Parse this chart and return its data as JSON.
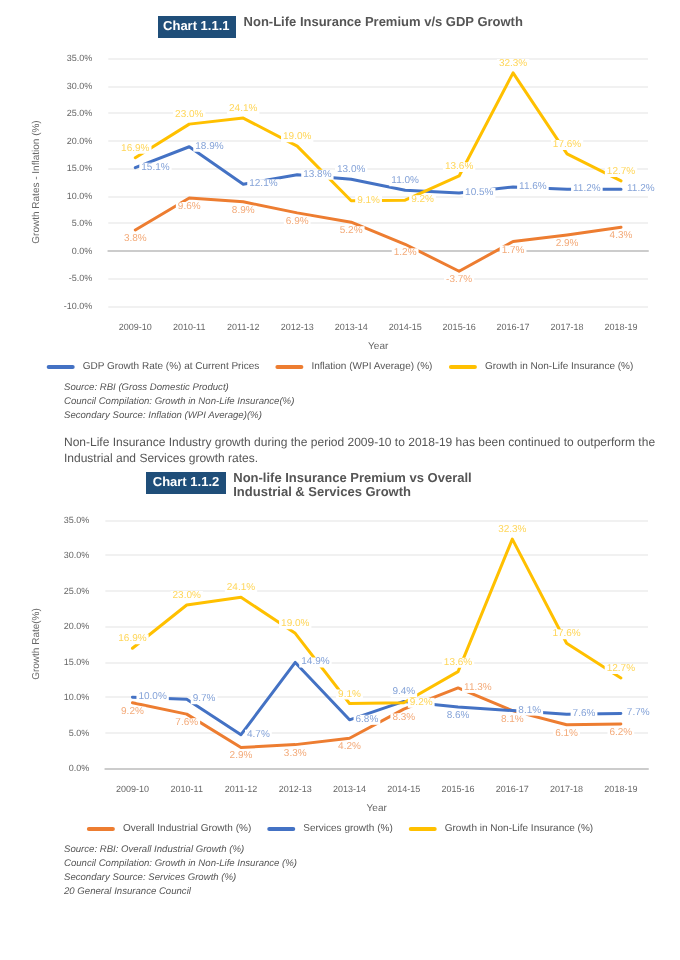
{
  "chart_data": [
    {
      "type": "line",
      "title": "Chart 1.1.1",
      "subtitle": "Non-Life Insurance Premium v/s GDP Growth",
      "xlabel": "Year",
      "ylabel": "Growth Rates - Inflation (%)",
      "categories": [
        "2009-10",
        "2010-11",
        "2011-12",
        "2012-13",
        "2013-14",
        "2014-15",
        "2015-16",
        "2016-17",
        "2017-18",
        "2018-19"
      ],
      "series": [
        {
          "name": "GDP Growth Rate (%) at Current Prices",
          "color": "#4472c4",
          "values": [
            15.1,
            18.9,
            12.1,
            13.8,
            13.0,
            11.0,
            10.5,
            11.6,
            11.2,
            11.2
          ],
          "value_labels": [
            "15.1%",
            "18.9%",
            "12.1%",
            "13.8%",
            "13.0%",
            "11.0%",
            "10.5%",
            "11.6%",
            "11.2%",
            "11.2%"
          ]
        },
        {
          "name": "Inflation (WPI Average) (%)",
          "color": "#ed7d31",
          "values": [
            3.8,
            9.6,
            8.9,
            6.9,
            5.2,
            1.2,
            -3.7,
            1.7,
            2.9,
            4.3
          ],
          "value_labels": [
            "3.8%",
            "9.6%",
            "8.9%",
            "6.9%",
            "5.2%",
            "1.2%",
            "-3.7%",
            "1.7%",
            "2.9%",
            "4.3%"
          ]
        },
        {
          "name": "Growth in Non-Life Insurance (%)",
          "color": "#ffc000",
          "values": [
            16.9,
            23.0,
            24.1,
            19.0,
            9.1,
            9.2,
            13.6,
            32.3,
            17.6,
            12.7
          ],
          "value_labels": [
            "16.9%",
            "23.0%",
            "24.1%",
            "19.0%",
            "9.1%",
            "9.2%",
            "13.6%",
            "32.3%",
            "17.6%",
            "12.7%"
          ]
        }
      ],
      "ylim": [
        -10,
        35
      ],
      "yticks": [
        {
          "value": -10,
          "label": "-10.0%"
        },
        {
          "value": -5,
          "label": "-5.0%"
        },
        {
          "value": 0,
          "label": "0.0%"
        },
        {
          "value": 5,
          "label": "5.0%"
        },
        {
          "value": 10,
          "label": "10.0%"
        },
        {
          "value": 15,
          "label": "15.0%"
        },
        {
          "value": 20,
          "label": "20.0%"
        },
        {
          "value": 25,
          "label": "25.0%"
        },
        {
          "value": 30,
          "label": "30.0%"
        },
        {
          "value": 35,
          "label": "35.0%"
        }
      ],
      "grid": "y",
      "legend": "bottom",
      "marker": "none",
      "line_style": "solid",
      "annotations": [
        "Source: RBI (Gross Domestic Product)",
        "Council Compilation: Growth in Non-Life Insurance(%)",
        "Secondary Source: Inflation (WPI Average)(%)",
        "Non-Life Insurance Industry growth during the period 2009-10 to 2018-19 has been continued to outperform the Industrial and Services growth rates."
      ]
    },
    {
      "type": "line",
      "title": "Chart 1.1.2",
      "subtitle": "Non-life Insurance Premium vs Overall Industrial & Services Growth",
      "xlabel": "Year",
      "ylabel": "Growth Rate(%)",
      "categories": [
        "2009-10",
        "2010-11",
        "2011-12",
        "2012-13",
        "2013-14",
        "2014-15",
        "2015-16",
        "2016-17",
        "2017-18",
        "2018-19"
      ],
      "series": [
        {
          "name": "Overall Industrial Growth (%)",
          "color": "#ed7d31",
          "values": [
            9.2,
            7.6,
            2.9,
            3.3,
            4.2,
            8.3,
            11.3,
            8.1,
            6.1,
            6.2
          ],
          "value_labels": [
            "9.2%",
            "7.6%",
            "2.9%",
            "3.3%",
            "4.2%",
            "8.3%",
            "11.3%",
            "8.1%",
            "6.1%",
            "6.2%"
          ]
        },
        {
          "name": "Services growth (%)",
          "color": "#4472c4",
          "values": [
            10.0,
            9.7,
            4.7,
            14.9,
            6.8,
            9.4,
            8.6,
            8.1,
            7.6,
            7.7
          ],
          "value_labels": [
            "10.0%",
            "9.7%",
            "4.7%",
            "14.9%",
            "6.8%",
            "9.4%",
            "8.6%",
            "8.1%",
            "7.6%",
            "7.7%"
          ]
        },
        {
          "name": "Growth in Non-Life Insurance (%)",
          "color": "#ffc000",
          "values": [
            16.9,
            23.0,
            24.1,
            19.0,
            9.1,
            9.2,
            13.6,
            32.3,
            17.6,
            12.7
          ],
          "value_labels": [
            "16.9%",
            "23.0%",
            "24.1%",
            "19.0%",
            "9.1%",
            "9.2%",
            "13.6%",
            "32.3%",
            "17.6%",
            "12.7%"
          ]
        }
      ],
      "ylim": [
        0,
        35
      ],
      "yticks": [
        {
          "value": 0,
          "label": "0.0%"
        },
        {
          "value": 5,
          "label": "5.0%"
        },
        {
          "value": 10,
          "label": "10.0%"
        },
        {
          "value": 15,
          "label": "15.0%"
        },
        {
          "value": 20,
          "label": "20.0%"
        },
        {
          "value": 25,
          "label": "25.0%"
        },
        {
          "value": 30,
          "label": "30.0%"
        },
        {
          "value": 35,
          "label": "35.0%"
        }
      ],
      "grid": "y",
      "legend": "bottom",
      "marker": "none",
      "line_style": "solid",
      "annotations": [
        "Source: RBI: Overall Industrial Growth (%)",
        "Council Compilation: Growth in Non-Life Insurance (%)",
        "Secondary Source: Services Growth (%)",
        "20 General Insurance Council"
      ]
    }
  ]
}
